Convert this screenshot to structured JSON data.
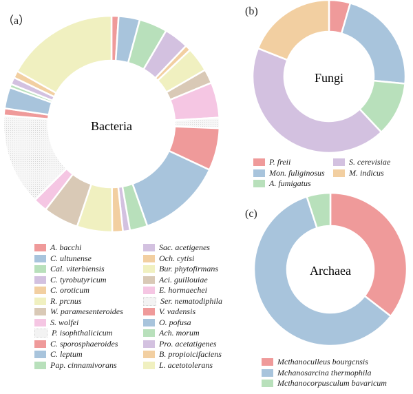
{
  "chart_data": [
    {
      "type": "pie",
      "panel_label": "（a）",
      "center_label": "Bacteria",
      "legend_placement": "bottom",
      "slices": [
        {
          "name": "A. bacchi",
          "value": 1.0,
          "color": "#ef9a9a"
        },
        {
          "name": "C. ultunense",
          "value": 3.0,
          "color": "#a8c4dc"
        },
        {
          "name": "Cal. viterbiensis",
          "value": 4.0,
          "color": "#b8e0bb"
        },
        {
          "name": "C. tyrobutyricum",
          "value": 3.5,
          "color": "#d3c1e0"
        },
        {
          "name": "C. oroticum",
          "value": 0.8,
          "color": "#f2cfa1"
        },
        {
          "name": "Bur. phytofirmans",
          "value": 3.5,
          "color": "#f0f0c0"
        },
        {
          "name": "Aci. guillouiae",
          "value": 2.0,
          "color": "#d9c9b6"
        },
        {
          "name": "E. hormaechei",
          "value": 5.0,
          "color": "#f5c6e3"
        },
        {
          "name": "Ser. nematodiphila",
          "value": 1.5,
          "color": "#f1f1f1"
        },
        {
          "name": "V. vadensis",
          "value": 6.0,
          "color": "#ef9a9a"
        },
        {
          "name": "O. pofusa",
          "value": 12.0,
          "color": "#a8c4dc"
        },
        {
          "name": "Ach. morum",
          "value": 2.5,
          "color": "#b8e0bb"
        },
        {
          "name": "Sac. acetigenes",
          "value": 1.0,
          "color": "#d3c1e0"
        },
        {
          "name": "Och. cytisi",
          "value": 1.5,
          "color": "#f2cfa1"
        },
        {
          "name": "L. acetotolerans",
          "value": 5.0,
          "color": "#f0f0c0"
        },
        {
          "name": "W. paramesenteroides",
          "value": 5.0,
          "color": "#d9c9b6"
        },
        {
          "name": "S. wolfei",
          "value": 2.0,
          "color": "#f5c6e3"
        },
        {
          "name": "P. isophthalicicum",
          "value": 13.0,
          "color": "#f1f1f1"
        },
        {
          "name": "C. sporosphaeroides",
          "value": 1.0,
          "color": "#ef9a9a"
        },
        {
          "name": "C. leptum",
          "value": 3.0,
          "color": "#a8c4dc"
        },
        {
          "name": "Pro. acetatigenes",
          "value": 0.5,
          "color": "#b8e0bb"
        },
        {
          "name": "Sac. acetigenes",
          "value": 1.0,
          "color": "#d3c1e0"
        },
        {
          "name": "B. propioicifaciens",
          "value": 1.0,
          "color": "#f2cfa1"
        },
        {
          "name": "R. prcnus",
          "value": 16.0,
          "color": "#f0f0c0"
        }
      ],
      "legend": [
        {
          "name": "A. bacchi",
          "color": "#ef9a9a"
        },
        {
          "name": "C. ultunense",
          "color": "#a8c4dc"
        },
        {
          "name": "Cal. viterbiensis",
          "color": "#b8e0bb"
        },
        {
          "name": "C. tyrobutyricum",
          "color": "#d3c1e0"
        },
        {
          "name": "C. oroticum",
          "color": "#f2cfa1"
        },
        {
          "name": "R. prcnus",
          "color": "#f0f0c0"
        },
        {
          "name": "W. paramesenteroides",
          "color": "#d9c9b6"
        },
        {
          "name": "S. wolfei",
          "color": "#f5c6e3"
        },
        {
          "name": "P. isophthalicicum",
          "color": "#f1f1f1"
        },
        {
          "name": "C. sporosphaeroides",
          "color": "#ef9a9a"
        },
        {
          "name": "C. leptum",
          "color": "#a8c4dc"
        },
        {
          "name": "Pap. cinnamivorans",
          "color": "#b8e0bb"
        },
        {
          "name": "Sac. acetigenes",
          "color": "#d3c1e0"
        },
        {
          "name": "Och. cytisi",
          "color": "#f2cfa1"
        },
        {
          "name": "Bur. phytofirmans",
          "color": "#f0f0c0"
        },
        {
          "name": "Aci. guillouiae",
          "color": "#d9c9b6"
        },
        {
          "name": "E. hormaechei",
          "color": "#f5c6e3"
        },
        {
          "name": "Ser. nematodiphila",
          "color": "#f1f1f1"
        },
        {
          "name": "V. vadensis",
          "color": "#ef9a9a"
        },
        {
          "name": "O. pofusa",
          "color": "#a8c4dc"
        },
        {
          "name": "Ach. morum",
          "color": "#b8e0bb"
        },
        {
          "name": "Pro. acetatigenes",
          "color": "#d3c1e0"
        },
        {
          "name": "B. propioicifaciens",
          "color": "#f2cfa1"
        },
        {
          "name": "L. acetotolerans",
          "color": "#f0f0c0"
        }
      ]
    },
    {
      "type": "pie",
      "panel_label": "(b)",
      "center_label": "Fungi",
      "legend_placement": "bottom",
      "slices": [
        {
          "name": "P. freii",
          "value": 4.5,
          "color": "#ef9a9a"
        },
        {
          "name": "Mon. fuliginosus",
          "value": 22.0,
          "color": "#a8c4dc"
        },
        {
          "name": "A. fumigatus",
          "value": 11.5,
          "color": "#b8e0bb"
        },
        {
          "name": "S. cerevisiae",
          "value": 43.0,
          "color": "#d3c1e0"
        },
        {
          "name": "M. indicus",
          "value": 19.0,
          "color": "#f2cfa1"
        }
      ],
      "legend": [
        {
          "name": "P. freii",
          "color": "#ef9a9a"
        },
        {
          "name": "Mon. fuliginosus",
          "color": "#a8c4dc"
        },
        {
          "name": "A. fumigatus",
          "color": "#b8e0bb"
        },
        {
          "name": "S. cerevisiae",
          "color": "#d3c1e0"
        },
        {
          "name": "M. indicus",
          "color": "#f2cfa1"
        }
      ]
    },
    {
      "type": "pie",
      "panel_label": "(c)",
      "center_label": "Archaea",
      "legend_placement": "bottom-right",
      "slices": [
        {
          "name": "Mcthanoculleus bourgcnsis",
          "value": 35.5,
          "color": "#ef9a9a"
        },
        {
          "name": "Mchanosarcina thermophila",
          "value": 59.5,
          "color": "#a8c4dc"
        },
        {
          "name": "Mcthanocorpusculum bavaricum",
          "value": 5.0,
          "color": "#b8e0bb"
        }
      ],
      "legend": [
        {
          "name": "Mcthanoculleus bourgcnsis",
          "color": "#ef9a9a"
        },
        {
          "name": "Mchanosarcina thermophila",
          "color": "#a8c4dc"
        },
        {
          "name": "Mcthanocorpusculum bavaricum",
          "color": "#b8e0bb"
        }
      ]
    }
  ]
}
